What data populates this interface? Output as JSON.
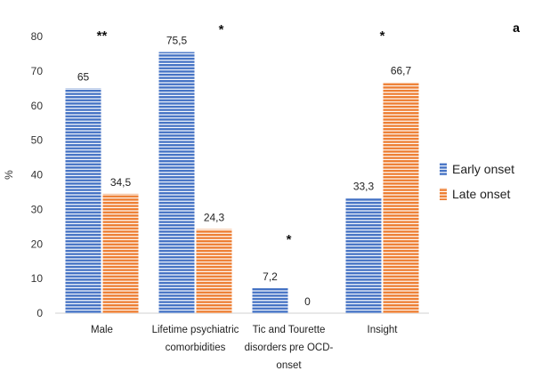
{
  "chart_data": {
    "type": "bar",
    "panel_label": "a",
    "ylabel": "%",
    "ylim": [
      0,
      80
    ],
    "yticks": [
      0,
      10,
      20,
      30,
      40,
      50,
      60,
      70,
      80
    ],
    "categories": [
      "Male",
      "Lifetime psychiatric comorbidities",
      "Tic and Tourette disorders pre OCD-onset",
      "Insight"
    ],
    "category_lines": [
      [
        "Male"
      ],
      [
        "Lifetime psychiatric",
        "comorbidities"
      ],
      [
        "Tic and Tourette",
        "disorders pre OCD-",
        "onset"
      ],
      [
        "Insight"
      ]
    ],
    "series": [
      {
        "name": "Early onset",
        "values": [
          65,
          75.5,
          7.2,
          33.3
        ],
        "labels": [
          "65",
          "75,5",
          "7,2",
          "33,3"
        ],
        "color": "#4472C4",
        "stripe": "#ffffff"
      },
      {
        "name": "Late onset",
        "values": [
          34.5,
          24.3,
          0,
          66.7
        ],
        "labels": [
          "34,5",
          "24,3",
          "0",
          "66,7"
        ],
        "color": "#ED7D31",
        "stripe": "#ffffff"
      }
    ],
    "significance": [
      "**",
      "*",
      "*",
      "*"
    ],
    "legend_position": "right",
    "grid": false
  }
}
